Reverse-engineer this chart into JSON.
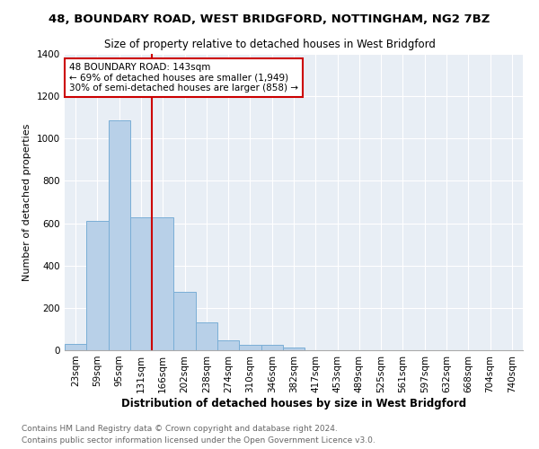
{
  "title": "48, BOUNDARY ROAD, WEST BRIDGFORD, NOTTINGHAM, NG2 7BZ",
  "subtitle": "Size of property relative to detached houses in West Bridgford",
  "xlabel": "Distribution of detached houses by size in West Bridgford",
  "ylabel": "Number of detached properties",
  "bin_labels": [
    "23sqm",
    "59sqm",
    "95sqm",
    "131sqm",
    "166sqm",
    "202sqm",
    "238sqm",
    "274sqm",
    "310sqm",
    "346sqm",
    "382sqm",
    "417sqm",
    "453sqm",
    "489sqm",
    "525sqm",
    "561sqm",
    "597sqm",
    "632sqm",
    "668sqm",
    "704sqm",
    "740sqm"
  ],
  "bar_values": [
    30,
    610,
    1085,
    630,
    630,
    275,
    130,
    47,
    25,
    25,
    12,
    0,
    0,
    0,
    0,
    0,
    0,
    0,
    0,
    0,
    0
  ],
  "bar_color": "#b8d0e8",
  "bar_edge_color": "#7aaed6",
  "redline_color": "#cc0000",
  "annotation_text": "48 BOUNDARY ROAD: 143sqm\n← 69% of detached houses are smaller (1,949)\n30% of semi-detached houses are larger (858) →",
  "annotation_box_facecolor": "#ffffff",
  "annotation_box_edgecolor": "#cc0000",
  "ylim": [
    0,
    1400
  ],
  "yticks": [
    0,
    200,
    400,
    600,
    800,
    1000,
    1200,
    1400
  ],
  "bg_color": "#e8eef5",
  "footnote1": "Contains HM Land Registry data © Crown copyright and database right 2024.",
  "footnote2": "Contains public sector information licensed under the Open Government Licence v3.0.",
  "title_fontsize": 9.5,
  "subtitle_fontsize": 8.5,
  "xlabel_fontsize": 8.5,
  "ylabel_fontsize": 8,
  "tick_fontsize": 7.5,
  "footnote_fontsize": 6.5
}
